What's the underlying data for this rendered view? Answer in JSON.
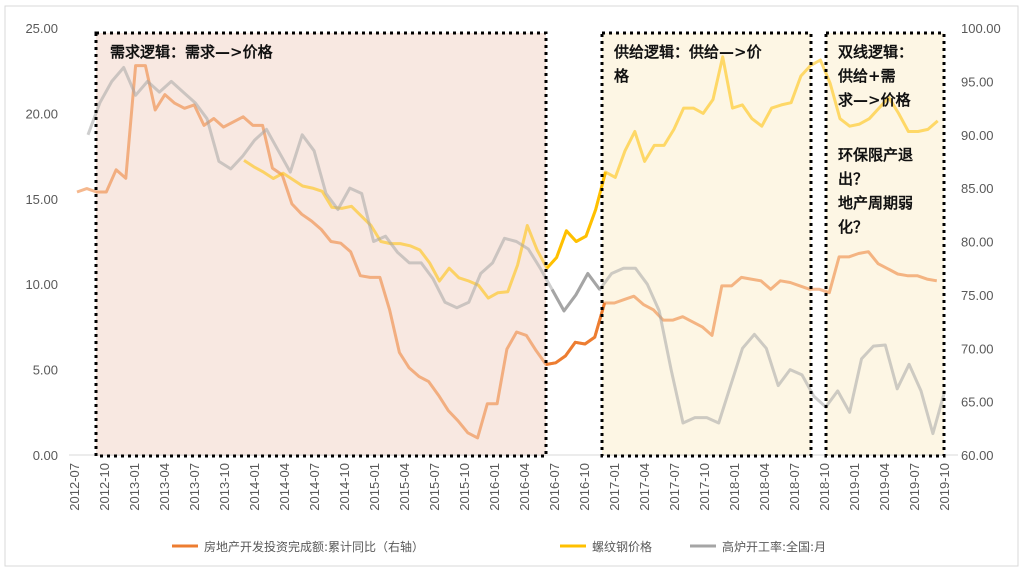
{
  "chart_data": {
    "type": "line",
    "left_axis": {
      "min": 0,
      "max": 25,
      "ticks": [
        "25.00",
        "20.00",
        "15.00",
        "10.00",
        "5.00",
        "0.00"
      ]
    },
    "right_axis": {
      "min": 60,
      "max": 100,
      "ticks": [
        "100.00",
        "95.00",
        "90.00",
        "85.00",
        "80.00",
        "75.00",
        "70.00",
        "65.00",
        "60.00"
      ]
    },
    "x_labels": [
      "2012-07",
      "2012-10",
      "2013-01",
      "2013-04",
      "2013-07",
      "2013-10",
      "2014-01",
      "2014-04",
      "2014-07",
      "2014-10",
      "2015-01",
      "2015-04",
      "2015-07",
      "2015-10",
      "2016-01",
      "2016-04",
      "2016-07",
      "2016-10",
      "2017-01",
      "2017-04",
      "2017-07",
      "2017-10",
      "2018-01",
      "2018-04",
      "2018-07",
      "2018-10",
      "2019-01",
      "2019-04",
      "2019-07",
      "2019-10"
    ],
    "series": [
      {
        "name": "房地产开发投资完成额:累计同比（右轴）",
        "color": "#ED7D31",
        "axis": "left",
        "points": [
          [
            0,
            15.4
          ],
          [
            1,
            15.6
          ],
          [
            2,
            15.4
          ],
          [
            3,
            15.4
          ],
          [
            4,
            16.7
          ],
          [
            5,
            16.2
          ],
          [
            6,
            22.8
          ],
          [
            7,
            22.8
          ],
          [
            8,
            20.2
          ],
          [
            9,
            21.1
          ],
          [
            10,
            20.6
          ],
          [
            11,
            20.3
          ],
          [
            12,
            20.5
          ],
          [
            13,
            19.3
          ],
          [
            14,
            19.7
          ],
          [
            15,
            19.2
          ],
          [
            16,
            19.5
          ],
          [
            17,
            19.8
          ],
          [
            18,
            19.3
          ],
          [
            19,
            19.3
          ],
          [
            20,
            16.8
          ],
          [
            21,
            16.4
          ],
          [
            22,
            14.7
          ],
          [
            23,
            14.1
          ],
          [
            24,
            13.7
          ],
          [
            25,
            13.2
          ],
          [
            26,
            12.5
          ],
          [
            27,
            12.4
          ],
          [
            28,
            11.9
          ],
          [
            29,
            10.5
          ],
          [
            30,
            10.4
          ],
          [
            31,
            10.4
          ],
          [
            32,
            8.5
          ],
          [
            33,
            6.0
          ],
          [
            34,
            5.1
          ],
          [
            35,
            4.6
          ],
          [
            36,
            4.3
          ],
          [
            37,
            3.5
          ],
          [
            38,
            2.6
          ],
          [
            39,
            2.0
          ],
          [
            40,
            1.3
          ],
          [
            41,
            1.0
          ],
          [
            42,
            3.0
          ],
          [
            43,
            3.0
          ],
          [
            44,
            6.2
          ],
          [
            45,
            7.2
          ],
          [
            46,
            7.0
          ],
          [
            47,
            6.1
          ],
          [
            48,
            5.3
          ],
          [
            49,
            5.4
          ],
          [
            50,
            5.8
          ],
          [
            51,
            6.6
          ],
          [
            52,
            6.5
          ],
          [
            53,
            6.9
          ],
          [
            54,
            8.9
          ],
          [
            55,
            8.9
          ],
          [
            56,
            9.1
          ],
          [
            57,
            9.3
          ],
          [
            58,
            8.8
          ],
          [
            59,
            8.5
          ],
          [
            60,
            7.9
          ],
          [
            61,
            7.9
          ],
          [
            62,
            8.1
          ],
          [
            63,
            7.8
          ],
          [
            64,
            7.5
          ],
          [
            65,
            7.0
          ],
          [
            66,
            9.9
          ],
          [
            67,
            9.9
          ],
          [
            68,
            10.4
          ],
          [
            69,
            10.3
          ],
          [
            70,
            10.2
          ],
          [
            71,
            9.7
          ],
          [
            72,
            10.2
          ],
          [
            73,
            10.1
          ],
          [
            74,
            9.9
          ],
          [
            75,
            9.7
          ],
          [
            76,
            9.7
          ],
          [
            77,
            9.5
          ],
          [
            78,
            11.6
          ],
          [
            79,
            11.6
          ],
          [
            80,
            11.8
          ],
          [
            81,
            11.9
          ],
          [
            82,
            11.2
          ],
          [
            83,
            10.9
          ],
          [
            84,
            10.6
          ],
          [
            85,
            10.5
          ],
          [
            86,
            10.5
          ],
          [
            87,
            10.3
          ],
          [
            88,
            10.2
          ]
        ]
      },
      {
        "name": "螺纹钢价格",
        "color": "#FFC000",
        "axis": "right",
        "points": [
          [
            18,
            87.6
          ],
          [
            19,
            87.0
          ],
          [
            20,
            86.5
          ],
          [
            21,
            85.9
          ],
          [
            22,
            86.4
          ],
          [
            23,
            85.8
          ],
          [
            24,
            85.2
          ],
          [
            25,
            85.0
          ],
          [
            26,
            84.7
          ],
          [
            27,
            83.2
          ],
          [
            28,
            83.1
          ],
          [
            29,
            83.3
          ],
          [
            30,
            82.4
          ],
          [
            31,
            81.5
          ],
          [
            32,
            80.0
          ],
          [
            33,
            79.8
          ],
          [
            34,
            79.8
          ],
          [
            35,
            79.6
          ],
          [
            36,
            79.2
          ],
          [
            37,
            78.0
          ],
          [
            38,
            76.3
          ],
          [
            39,
            77.5
          ],
          [
            40,
            76.6
          ],
          [
            41,
            76.3
          ],
          [
            42,
            75.9
          ],
          [
            43,
            74.7
          ],
          [
            44,
            75.2
          ],
          [
            45,
            75.3
          ],
          [
            46,
            77.8
          ],
          [
            47,
            81.5
          ],
          [
            48,
            79.2
          ],
          [
            49,
            77.5
          ],
          [
            50,
            78.5
          ],
          [
            51,
            81.0
          ],
          [
            52,
            80.0
          ],
          [
            53,
            80.5
          ],
          [
            54,
            83.0
          ],
          [
            55,
            86.5
          ],
          [
            56,
            86.0
          ],
          [
            57,
            88.5
          ],
          [
            58,
            90.3
          ],
          [
            59,
            87.5
          ],
          [
            60,
            89.0
          ],
          [
            61,
            89.0
          ],
          [
            62,
            90.5
          ],
          [
            63,
            92.5
          ],
          [
            64,
            92.5
          ],
          [
            65,
            92.0
          ],
          [
            66,
            93.3
          ],
          [
            67,
            97.3
          ],
          [
            68,
            92.5
          ],
          [
            69,
            92.8
          ],
          [
            70,
            91.5
          ],
          [
            71,
            90.8
          ],
          [
            72,
            92.5
          ],
          [
            73,
            92.8
          ],
          [
            74,
            93.0
          ],
          [
            75,
            95.5
          ],
          [
            76,
            96.5
          ],
          [
            77,
            97.0
          ],
          [
            78,
            94.8
          ],
          [
            79,
            91.5
          ],
          [
            80,
            90.8
          ],
          [
            81,
            91.0
          ],
          [
            82,
            91.5
          ],
          [
            83,
            92.5
          ],
          [
            84,
            93.5
          ],
          [
            85,
            92.0
          ],
          [
            86,
            90.3
          ],
          [
            87,
            90.3
          ],
          [
            88,
            90.5
          ],
          [
            89,
            91.3
          ]
        ]
      },
      {
        "name": "高炉开工率:全国:月",
        "color": "#A5A5A5",
        "axis": "right",
        "points": [
          [
            1,
            90.0
          ],
          [
            3,
            93.0
          ],
          [
            5,
            95.0
          ],
          [
            7,
            96.3
          ],
          [
            9,
            93.7
          ],
          [
            11,
            95.0
          ],
          [
            13,
            94.0
          ],
          [
            15,
            95.0
          ],
          [
            17,
            94.0
          ],
          [
            19,
            93.0
          ],
          [
            21,
            91.5
          ],
          [
            23,
            87.5
          ],
          [
            25,
            86.8
          ],
          [
            27,
            88.0
          ],
          [
            29,
            89.5
          ],
          [
            31,
            90.5
          ],
          [
            33,
            88.5
          ],
          [
            35,
            86.5
          ],
          [
            37,
            90.0
          ],
          [
            39,
            88.5
          ],
          [
            41,
            84.5
          ],
          [
            43,
            83.0
          ],
          [
            45,
            85.0
          ],
          [
            47,
            84.5
          ],
          [
            49,
            80.0
          ],
          [
            51,
            80.5
          ],
          [
            53,
            79.0
          ],
          [
            55,
            78.0
          ],
          [
            57,
            78.0
          ],
          [
            59,
            76.5
          ],
          [
            61,
            74.3
          ],
          [
            63,
            73.8
          ],
          [
            65,
            74.3
          ],
          [
            67,
            77.0
          ],
          [
            69,
            78.0
          ],
          [
            71,
            80.3
          ],
          [
            73,
            80.0
          ],
          [
            75,
            79.3
          ],
          [
            77,
            77.5
          ],
          [
            79,
            75.5
          ],
          [
            81,
            73.5
          ],
          [
            83,
            75.0
          ],
          [
            85,
            77.0
          ],
          [
            87,
            75.5
          ],
          [
            89,
            77.0
          ],
          [
            91,
            77.5
          ],
          [
            93,
            77.5
          ],
          [
            95,
            76.0
          ],
          [
            97,
            73.5
          ],
          [
            99,
            68.0
          ],
          [
            101,
            63.0
          ],
          [
            103,
            63.5
          ],
          [
            105,
            63.5
          ],
          [
            107,
            63.0
          ],
          [
            109,
            66.5
          ],
          [
            111,
            70.0
          ],
          [
            113,
            71.3
          ],
          [
            115,
            70.0
          ],
          [
            117,
            66.5
          ],
          [
            119,
            68.0
          ],
          [
            121,
            67.5
          ],
          [
            123,
            65.5
          ],
          [
            125,
            64.5
          ],
          [
            127,
            66.0
          ],
          [
            129,
            64.0
          ],
          [
            131,
            69.0
          ],
          [
            133,
            70.2
          ],
          [
            135,
            70.3
          ],
          [
            137,
            66.2
          ],
          [
            139,
            68.5
          ],
          [
            141,
            66.0
          ],
          [
            143,
            62.0
          ],
          [
            145,
            66.0
          ]
        ]
      }
    ],
    "highlight_segment": {
      "start": 47,
      "end": 54
    },
    "legend": [
      "房地产开发投资完成额:累计同比（右轴）",
      "螺纹钢价格",
      "高炉开工率:全国:月"
    ]
  },
  "annotations": {
    "box1": [
      "需求逻辑：需求—>价格"
    ],
    "box2": [
      "供给逻辑：供给—>价",
      "格"
    ],
    "box3": [
      "双线逻辑：",
      "供给+需",
      "求—>价格",
      "环保限产退",
      "出？",
      "地产周期弱",
      "化？"
    ]
  }
}
